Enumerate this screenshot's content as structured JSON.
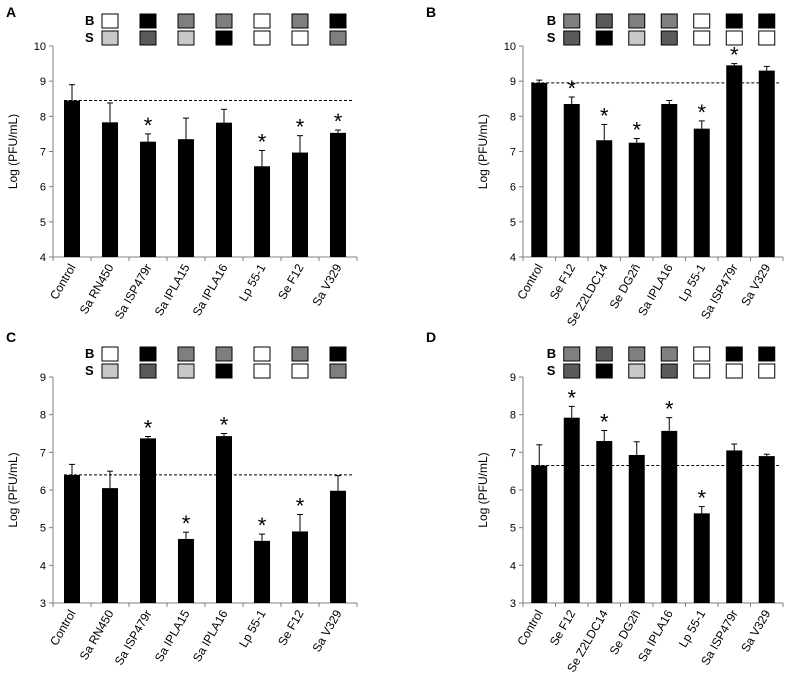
{
  "colors": {
    "bar": "#000000",
    "box_white": "#ffffff",
    "box_light_gray": "#c8c8c8",
    "box_mid_gray": "#7f7f7f",
    "box_dark_gray": "#5a5a5a",
    "box_black": "#000000"
  },
  "chart_data": [
    {
      "panel": "A",
      "type": "bar",
      "title": "",
      "xlabel": "",
      "ylabel": "Log (PFU/mL)",
      "ylim": [
        4,
        10
      ],
      "yticks": [
        4,
        5,
        6,
        7,
        8,
        9,
        10
      ],
      "categories": [
        "Control",
        "Sa RN450",
        "Sa ISP479r",
        "Sa IPLA15",
        "Sa IPLA16",
        "Lp 55-1",
        "Se F12",
        "Sa V329"
      ],
      "values": [
        8.45,
        7.83,
        7.28,
        7.35,
        7.82,
        6.58,
        6.97,
        7.53
      ],
      "errors": [
        0.45,
        0.55,
        0.22,
        0.6,
        0.38,
        0.45,
        0.48,
        0.08
      ],
      "significant": [
        false,
        false,
        true,
        false,
        false,
        true,
        true,
        true
      ],
      "significance_marker": "*",
      "control_reference": 8.45,
      "legend_rows": [
        "B",
        "S"
      ],
      "legend_boxes": [
        [
          "white",
          "light_gray"
        ],
        [
          "black",
          "dark_gray"
        ],
        [
          "mid_gray",
          "light_gray"
        ],
        [
          "mid_gray",
          "black"
        ],
        [
          "white",
          "white"
        ],
        [
          "mid_gray",
          "white"
        ],
        [
          "black",
          "mid_gray"
        ]
      ]
    },
    {
      "panel": "B",
      "type": "bar",
      "title": "",
      "xlabel": "",
      "ylabel": "Log (PFU/mL)",
      "ylim": [
        4,
        10
      ],
      "yticks": [
        4,
        5,
        6,
        7,
        8,
        9,
        10
      ],
      "categories": [
        "Control",
        "Se F12",
        "Se Z2LDC14",
        "Se DG2ñ",
        "Sa IPLA16",
        "Lp 55-1",
        "Sa ISP479r",
        "Sa V329"
      ],
      "values": [
        8.95,
        8.35,
        7.32,
        7.25,
        8.35,
        7.65,
        9.45,
        9.3
      ],
      "errors": [
        0.08,
        0.2,
        0.45,
        0.12,
        0.1,
        0.22,
        0.05,
        0.12
      ],
      "significant": [
        false,
        true,
        true,
        true,
        false,
        true,
        true,
        false
      ],
      "significance_marker": "*",
      "control_reference": 8.95,
      "legend_rows": [
        "B",
        "S"
      ],
      "legend_boxes": [
        [
          "mid_gray",
          "dark_gray"
        ],
        [
          "dark_gray",
          "black"
        ],
        [
          "mid_gray",
          "light_gray"
        ],
        [
          "mid_gray",
          "dark_gray"
        ],
        [
          "white",
          "white"
        ],
        [
          "black",
          "white"
        ],
        [
          "black",
          "white"
        ]
      ]
    },
    {
      "panel": "C",
      "type": "bar",
      "title": "",
      "xlabel": "",
      "ylabel": "Log (PFU/mL)",
      "ylim": [
        3,
        9
      ],
      "yticks": [
        3,
        4,
        5,
        6,
        7,
        8,
        9
      ],
      "categories": [
        "Control",
        "Sa RN450",
        "Sa ISP479r",
        "Sa IPLA15",
        "Sa IPLA16",
        "Lp 55-1",
        "Se F12",
        "Sa V329"
      ],
      "values": [
        6.4,
        6.05,
        7.37,
        4.7,
        7.43,
        4.65,
        4.9,
        5.98
      ],
      "errors": [
        0.28,
        0.45,
        0.05,
        0.18,
        0.07,
        0.18,
        0.45,
        0.4
      ],
      "significant": [
        false,
        false,
        true,
        true,
        true,
        true,
        true,
        false
      ],
      "significance_marker": "*",
      "control_reference": 6.4,
      "legend_rows": [
        "B",
        "S"
      ],
      "legend_boxes": [
        [
          "white",
          "light_gray"
        ],
        [
          "black",
          "dark_gray"
        ],
        [
          "mid_gray",
          "light_gray"
        ],
        [
          "mid_gray",
          "black"
        ],
        [
          "white",
          "white"
        ],
        [
          "mid_gray",
          "white"
        ],
        [
          "black",
          "mid_gray"
        ]
      ]
    },
    {
      "panel": "D",
      "type": "bar",
      "title": "",
      "xlabel": "",
      "ylabel": "Log (PFU/mL)",
      "ylim": [
        3,
        9
      ],
      "yticks": [
        3,
        4,
        5,
        6,
        7,
        8,
        9
      ],
      "categories": [
        "Control",
        "Se F12",
        "Se Z2LDC14",
        "Se DG2ñ",
        "Sa IPLA16",
        "Lp 55-1",
        "Sa ISP479r",
        "Sa V329"
      ],
      "values": [
        6.65,
        7.92,
        7.3,
        6.93,
        7.57,
        5.38,
        7.05,
        6.9
      ],
      "errors": [
        0.55,
        0.3,
        0.28,
        0.35,
        0.35,
        0.18,
        0.17,
        0.05
      ],
      "significant": [
        false,
        true,
        true,
        false,
        true,
        true,
        false,
        false
      ],
      "significance_marker": "*",
      "control_reference": 6.65,
      "legend_rows": [
        "B",
        "S"
      ],
      "legend_boxes": [
        [
          "mid_gray",
          "dark_gray"
        ],
        [
          "dark_gray",
          "black"
        ],
        [
          "mid_gray",
          "light_gray"
        ],
        [
          "mid_gray",
          "dark_gray"
        ],
        [
          "white",
          "white"
        ],
        [
          "black",
          "white"
        ],
        [
          "black",
          "white"
        ]
      ]
    }
  ]
}
